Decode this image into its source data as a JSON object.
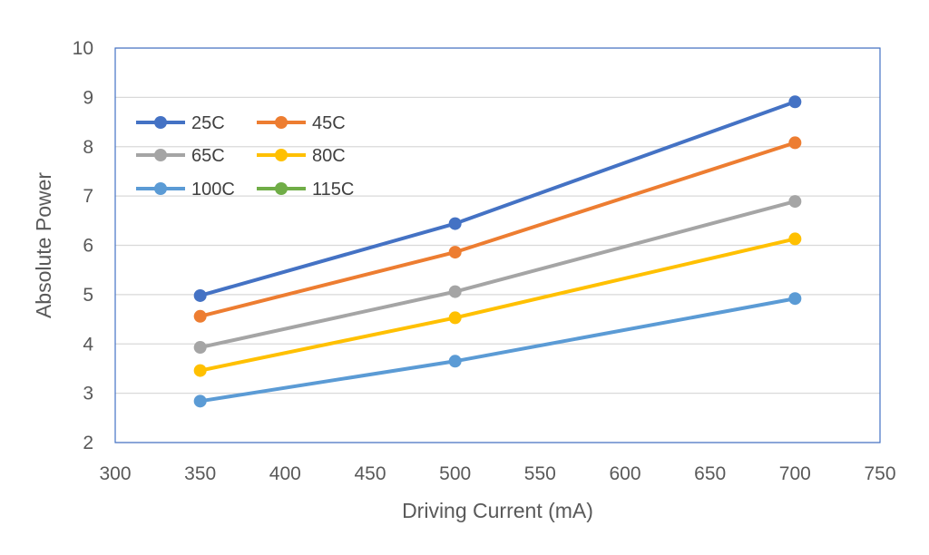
{
  "chart_data": {
    "type": "line",
    "title": "",
    "xlabel": "Driving Current (mA)",
    "ylabel": "Absolute Power",
    "xlim": [
      300,
      750
    ],
    "ylim": [
      2,
      10
    ],
    "x_ticks": [
      "300",
      "350",
      "400",
      "450",
      "500",
      "550",
      "600",
      "650",
      "700",
      "750"
    ],
    "y_ticks": [
      "2",
      "3",
      "4",
      "5",
      "6",
      "7",
      "8",
      "9",
      "10"
    ],
    "grid": "horizontal",
    "legend_position": "top-left",
    "series": [
      {
        "name": "25C",
        "color": "#4472C4",
        "x": [
          350,
          500,
          700
        ],
        "y": [
          4.98,
          6.44,
          8.91
        ]
      },
      {
        "name": "45C",
        "color": "#ED7D31",
        "x": [
          350,
          500,
          700
        ],
        "y": [
          4.56,
          5.86,
          8.08
        ]
      },
      {
        "name": "65C",
        "color": "#A5A5A5",
        "x": [
          350,
          500,
          700
        ],
        "y": [
          3.93,
          5.06,
          6.89
        ]
      },
      {
        "name": "80C",
        "color": "#FFC000",
        "x": [
          350,
          500,
          700
        ],
        "y": [
          3.46,
          4.53,
          6.13
        ]
      },
      {
        "name": "100C",
        "color": "#5B9BD5",
        "x": [
          350,
          500,
          700
        ],
        "y": [
          2.84,
          3.65,
          4.92
        ]
      },
      {
        "name": "115C",
        "color": "#70AD47",
        "x": [],
        "y": []
      }
    ]
  }
}
